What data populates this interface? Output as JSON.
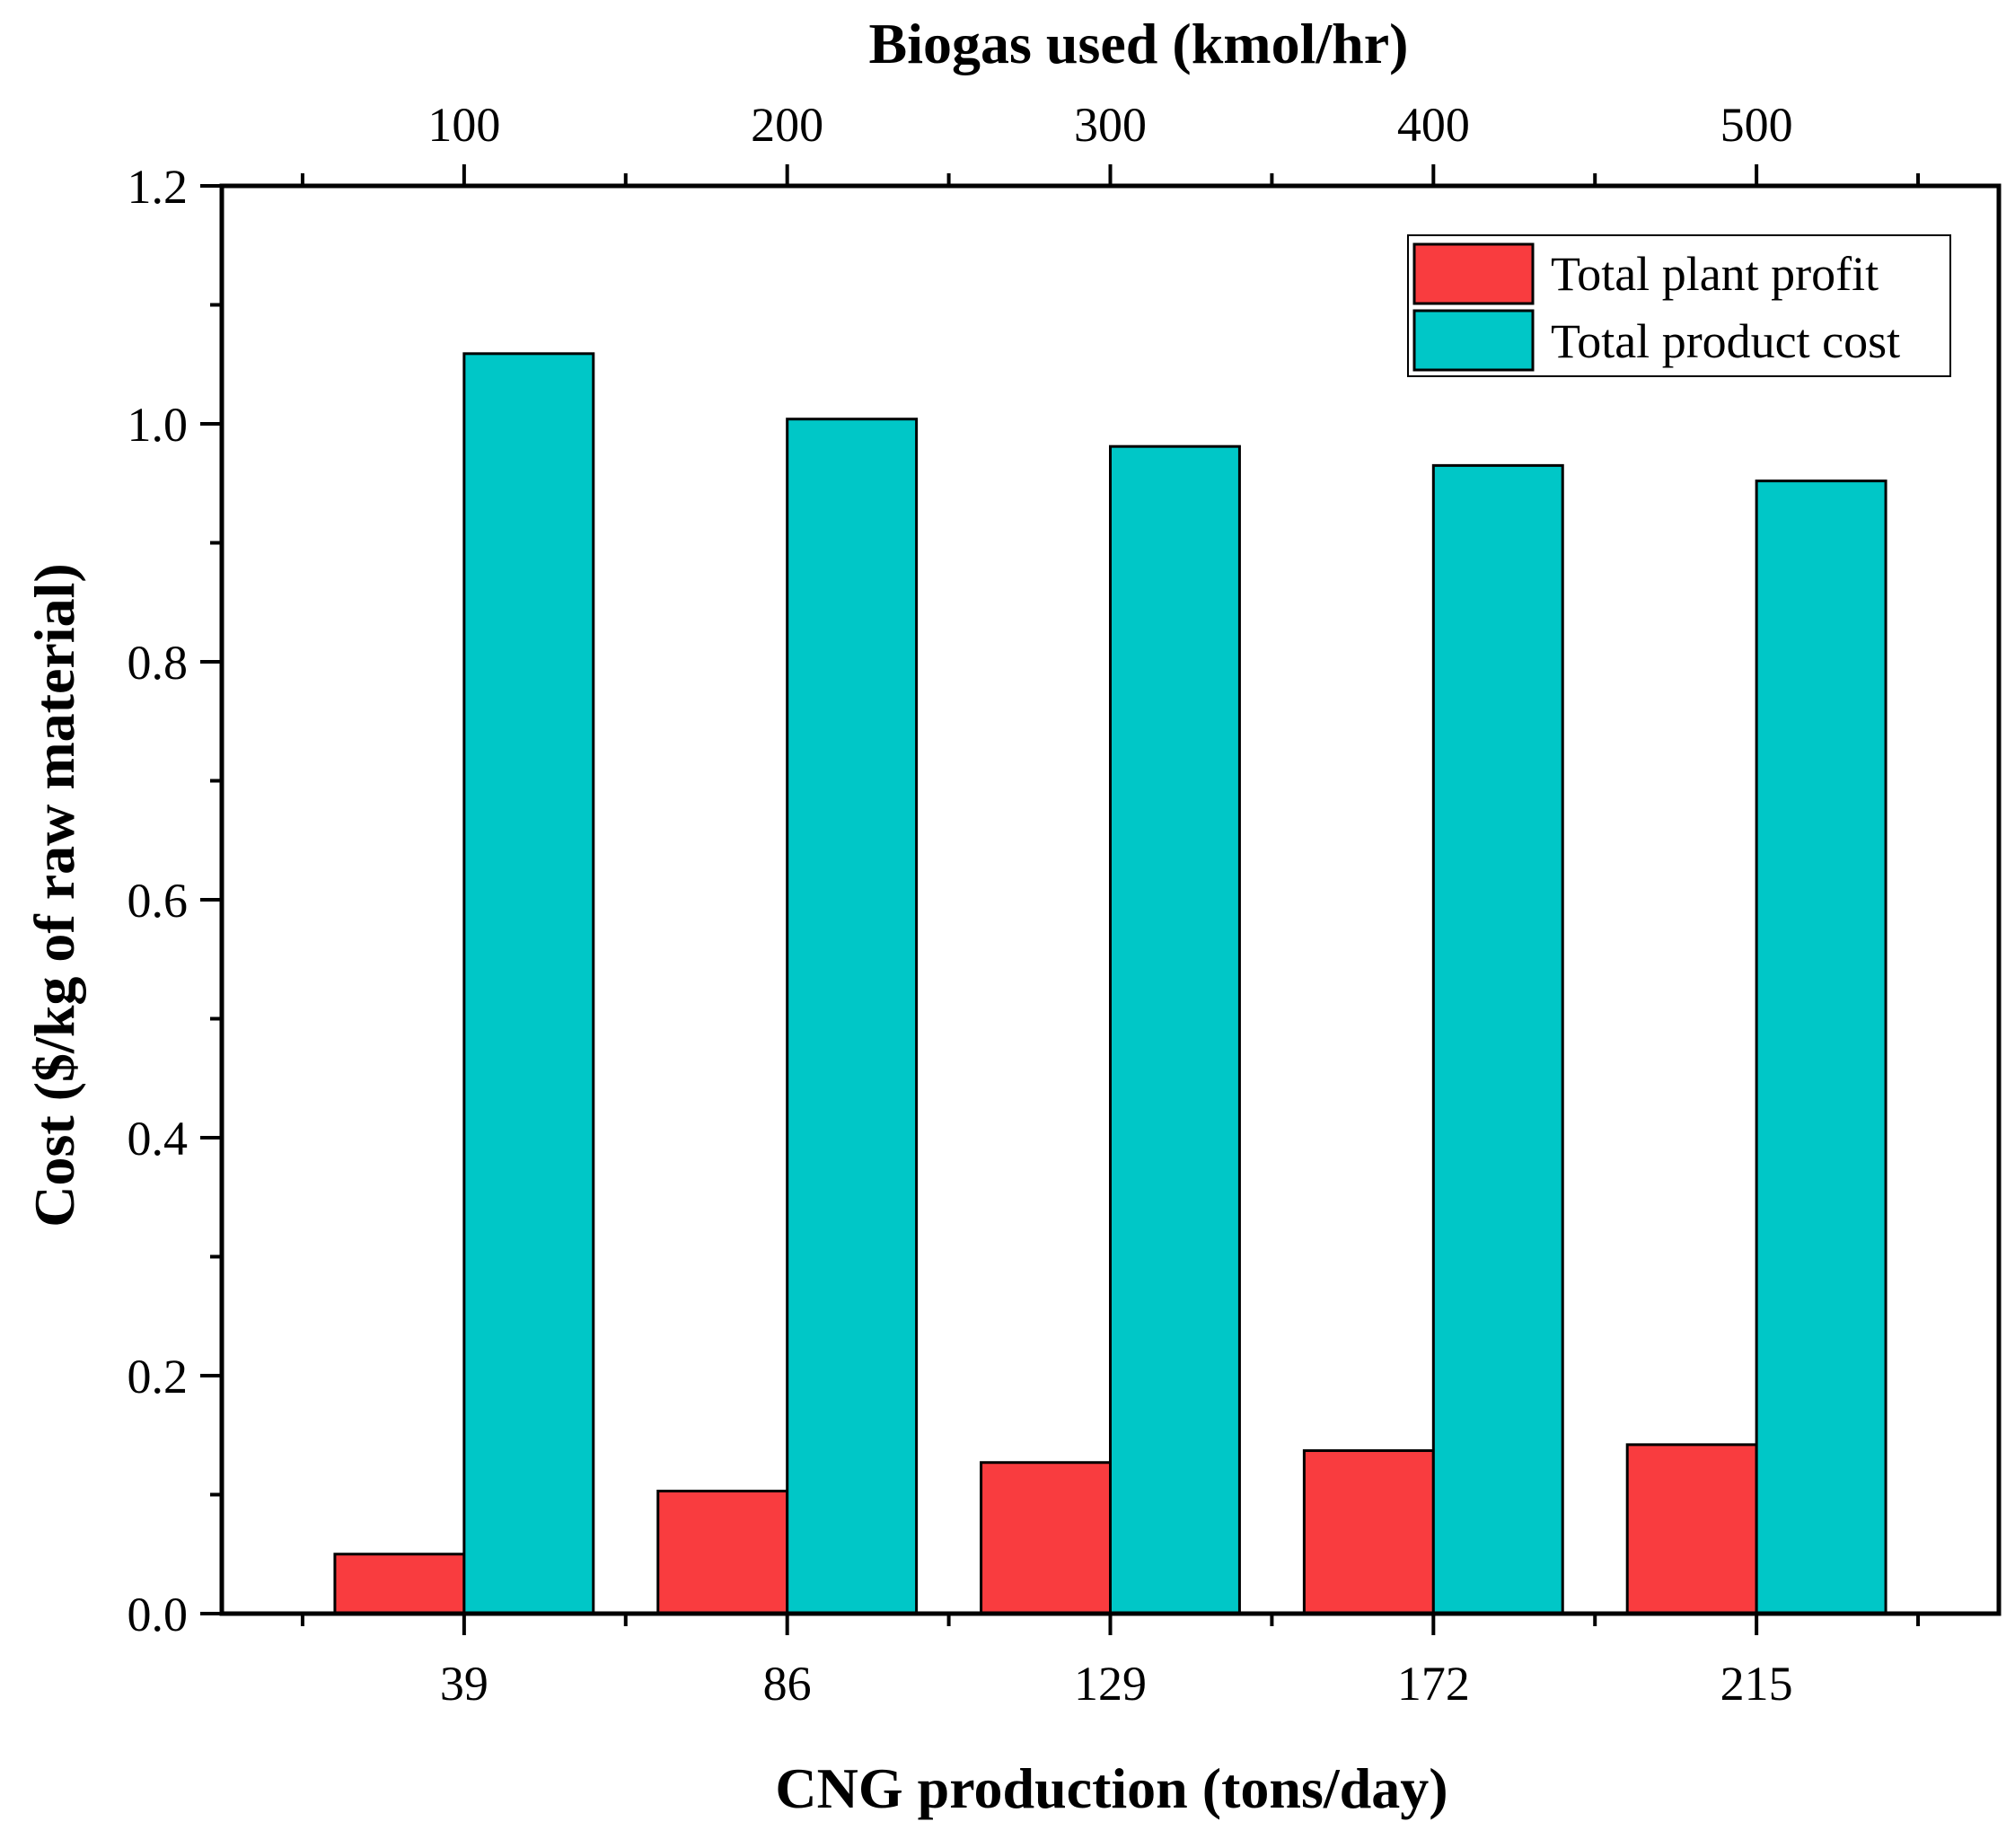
{
  "chart_data": {
    "type": "bar",
    "title": "",
    "categories": [
      "39",
      "86",
      "129",
      "172",
      "215"
    ],
    "top_categories": [
      "100",
      "200",
      "300",
      "400",
      "500"
    ],
    "xlabel": "CNG production (tons/day)",
    "top_xlabel": "Biogas used (kmol/hr)",
    "ylabel": "Cost ($/kg of raw material)",
    "ylim": [
      0,
      1.2
    ],
    "yticks": [
      "0.0",
      "0.2",
      "0.4",
      "0.6",
      "0.8",
      "1.0",
      "1.2"
    ],
    "legend_position": "top-right",
    "series": [
      {
        "name": "Total plant profit",
        "color": "#f93c3f",
        "values": [
          0.05,
          0.103,
          0.127,
          0.137,
          0.142
        ]
      },
      {
        "name": "Total product cost",
        "color": "#00c7c7",
        "values": [
          1.059,
          1.004,
          0.981,
          0.965,
          0.952
        ]
      }
    ]
  }
}
